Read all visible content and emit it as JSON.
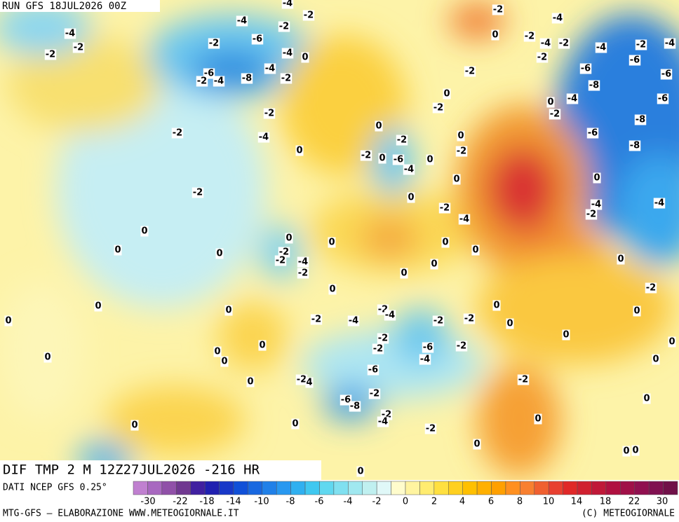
{
  "header": {
    "run": "RUN GFS 18JUL2026 00Z",
    "field": "DIF TMP 2 M 12Z27JUL2026 -216 HR"
  },
  "footer": {
    "source": "DATI NCEP GFS 0.25°",
    "credit": "MTG-GFS — ELABORAZIONE WWW.METEOGIORNALE.IT",
    "copyright": "(C) METEOGIORNALE"
  },
  "colorbar": {
    "ticks": [
      -30,
      -22,
      -18,
      -14,
      -10,
      -8,
      -6,
      -4,
      -2,
      0,
      2,
      4,
      6,
      8,
      10,
      14,
      18,
      22,
      30
    ]
  },
  "map": {
    "labels": [
      "-4",
      "-2",
      "-2",
      "-4",
      "-2",
      "-2",
      "-4",
      "-2",
      "-6",
      "-4",
      "0",
      "-4",
      "-8",
      "-2",
      "-6",
      "-2",
      "-4",
      "-2",
      "-2",
      "-4",
      "0",
      "-2",
      "0",
      "0",
      "0",
      "0",
      "0",
      "0",
      "-2",
      "-4",
      "0",
      "-2",
      "-4",
      "-2",
      "-2",
      "-4",
      "-2",
      "-4",
      "-6",
      "-6",
      "-2",
      "-8",
      "-6",
      "-4",
      "-6",
      "0",
      "-2",
      "0",
      "-2",
      "-8",
      "-6",
      "-8",
      "0",
      "0",
      "-2",
      "-2",
      "-2",
      "-6",
      "0",
      "-4",
      "0",
      "0",
      "0",
      "0",
      "-4",
      "-4",
      "-2",
      "-2",
      "-4",
      "0",
      "-2",
      "-2",
      "0",
      "0",
      "0",
      "-4",
      "-2",
      "0",
      "0",
      "0",
      "0",
      "-2",
      "0",
      "0",
      "-2",
      "-4",
      "0",
      "-2",
      "-4",
      "-2",
      "-2",
      "0",
      "0",
      "0",
      "-2",
      "-6",
      "-2",
      "-2",
      "0",
      "0",
      "-4",
      "-6",
      "0",
      "-2",
      "4",
      "0",
      "-2",
      "-2",
      "-6",
      "-8",
      "0",
      "-2",
      "-4",
      "0",
      "0",
      "-2",
      "0",
      "0",
      "0",
      "0",
      "0",
      "0"
    ]
  }
}
